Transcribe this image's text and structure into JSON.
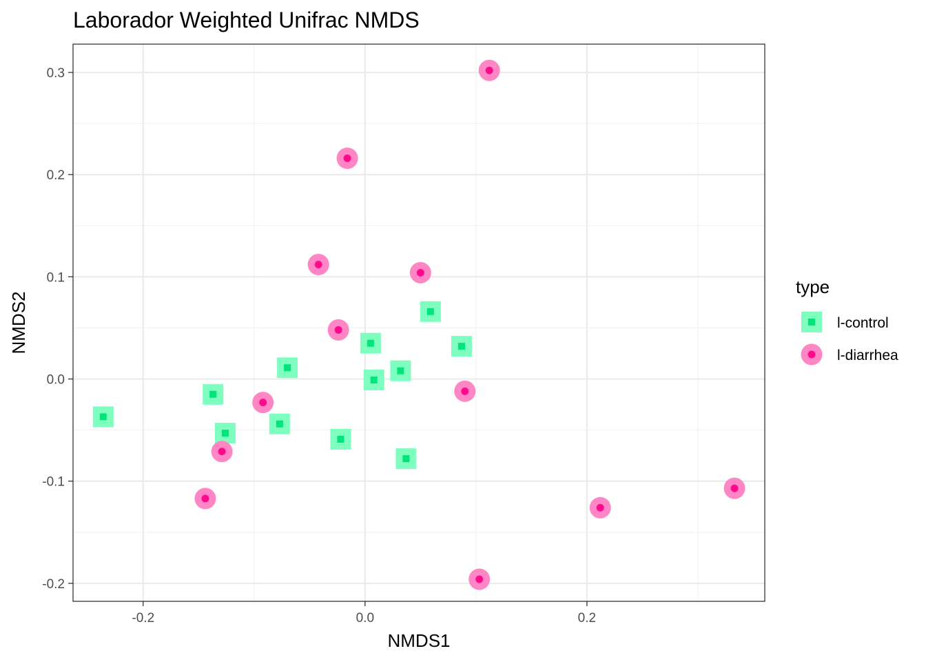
{
  "chart_data": {
    "type": "scatter",
    "title": "Laborador Weighted Unifrac NMDS",
    "xlabel": "NMDS1",
    "ylabel": "NMDS2",
    "xlim": [
      -0.2632,
      0.3603
    ],
    "ylim": [
      -0.2176,
      0.3277
    ],
    "x_ticks": [
      -0.2,
      0.0,
      0.2
    ],
    "x_tick_labels": [
      "-0.2",
      "0.0",
      "0.2"
    ],
    "y_ticks": [
      -0.2,
      -0.1,
      0.0,
      0.1,
      0.2,
      0.3
    ],
    "y_tick_labels": [
      "-0.2",
      "-0.1",
      "0.0",
      "0.1",
      "0.2",
      "0.3"
    ],
    "grid": true,
    "legend": {
      "title": "type",
      "position": "right"
    },
    "series": [
      {
        "name": "l-control",
        "marker": "square",
        "outer_color": "#7fffbf",
        "inner_color": "#00e57a",
        "points": [
          {
            "x": -0.236,
            "y": -0.037
          },
          {
            "x": -0.137,
            "y": -0.015
          },
          {
            "x": -0.126,
            "y": -0.053
          },
          {
            "x": -0.077,
            "y": -0.044
          },
          {
            "x": -0.07,
            "y": 0.011
          },
          {
            "x": -0.022,
            "y": -0.059
          },
          {
            "x": 0.005,
            "y": 0.035
          },
          {
            "x": 0.008,
            "y": -0.001
          },
          {
            "x": 0.032,
            "y": 0.008
          },
          {
            "x": 0.037,
            "y": -0.078
          },
          {
            "x": 0.059,
            "y": 0.066
          },
          {
            "x": 0.087,
            "y": 0.032
          }
        ]
      },
      {
        "name": "l-diarrhea",
        "marker": "circle",
        "outer_color": "#ff86c4",
        "inner_color": "#ff0a8c",
        "points": [
          {
            "x": -0.144,
            "y": -0.117
          },
          {
            "x": -0.129,
            "y": -0.071
          },
          {
            "x": -0.092,
            "y": -0.023
          },
          {
            "x": -0.042,
            "y": 0.112
          },
          {
            "x": -0.024,
            "y": 0.048
          },
          {
            "x": -0.016,
            "y": 0.216
          },
          {
            "x": 0.05,
            "y": 0.104
          },
          {
            "x": 0.09,
            "y": -0.012
          },
          {
            "x": 0.103,
            "y": -0.196
          },
          {
            "x": 0.112,
            "y": 0.302
          },
          {
            "x": 0.212,
            "y": -0.126
          },
          {
            "x": 0.333,
            "y": -0.107
          }
        ]
      }
    ]
  }
}
